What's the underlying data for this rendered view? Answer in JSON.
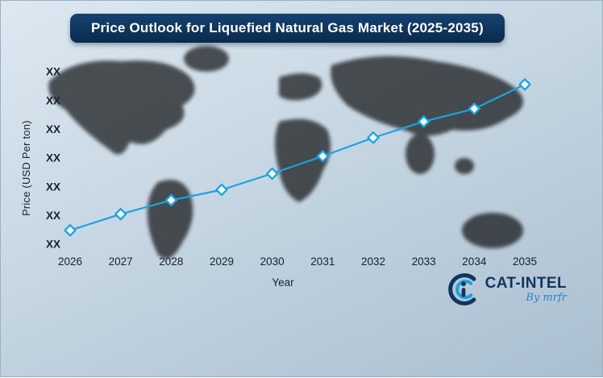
{
  "title": "Price Outlook for Liquefied Natural Gas Market (2025-2035)",
  "axes": {
    "y_label": "Price (USD Per ton)",
    "x_label": "Year"
  },
  "logo": {
    "name": "CAT-INTEL",
    "byline": "By mrfr"
  },
  "colors": {
    "bg1": "#dde8f1",
    "bg2": "#c6d6e2",
    "bg3": "#a9bfd0",
    "banner-top": "#154271",
    "banner-bottom": "#0a2a4d",
    "line": "#1ba3de",
    "marker-fill": "#f8fcff",
    "text": "#16222e",
    "navy": "#12355f",
    "byline-blue": "#2a85c8",
    "map": "#edf4f9"
  },
  "chart_data": {
    "type": "line",
    "title": "Price Outlook for Liquefied Natural Gas Market (2025-2035)",
    "xlabel": "Year",
    "ylabel": "Price (USD Per ton)",
    "x_tick_labels": [
      "2026",
      "2027",
      "2028",
      "2029",
      "2030",
      "2031",
      "2032",
      "2033",
      "2034",
      "2035"
    ],
    "y_tick_labels": [
      "XX",
      "XX",
      "XX",
      "XX",
      "XX",
      "XX",
      "XX"
    ],
    "x": [
      2026,
      2027,
      2028,
      2029,
      2030,
      2031,
      2032,
      2033,
      2034,
      2035
    ],
    "values_relative": [
      1.05,
      1.75,
      2.35,
      2.8,
      3.5,
      4.25,
      5.05,
      5.75,
      6.3,
      7.35
    ],
    "ylim": [
      0.45,
      7.9
    ],
    "grid": false,
    "legend": "none",
    "marker": "open-diamond",
    "note": "Y-axis tick values are masked as XX in the source image; values_relative are visual estimates of marker heights."
  }
}
